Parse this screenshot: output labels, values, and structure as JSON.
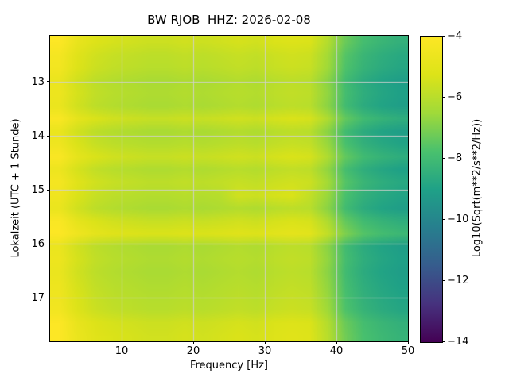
{
  "chart_data": {
    "type": "heatmap",
    "title": "BW RJOB  HHZ: 2026-02-08",
    "xlabel": "Frequency [Hz]",
    "ylabel": "Lokalzeit (UTC + 1 Stunde)",
    "colorbar_label": "Log10(Sqrt(m**2/s**2/Hz))",
    "x_range": [
      0,
      50
    ],
    "y_range": [
      12.15,
      17.8
    ],
    "xticks": [
      10,
      20,
      30,
      40,
      50
    ],
    "yticks": [
      13,
      14,
      15,
      16,
      17
    ],
    "colorbar_ticks": [
      -4,
      -6,
      -8,
      -10,
      -12,
      -14
    ],
    "colorbar_tick_labels": [
      "−4",
      "−6",
      "−8",
      "−10",
      "−12",
      "−14"
    ],
    "value_range": [
      -14,
      -4
    ],
    "grid": true,
    "grid_color": "#d0d0d0",
    "colormap": "viridis",
    "colormap_stops": [
      {
        "t": 0.0,
        "color": "#440154"
      },
      {
        "t": 0.125,
        "color": "#46327e"
      },
      {
        "t": 0.25,
        "color": "#365c8d"
      },
      {
        "t": 0.375,
        "color": "#277f8e"
      },
      {
        "t": 0.5,
        "color": "#1fa187"
      },
      {
        "t": 0.625,
        "color": "#4ac16d"
      },
      {
        "t": 0.75,
        "color": "#a0da39"
      },
      {
        "t": 0.875,
        "color": "#dde318"
      },
      {
        "t": 1.0,
        "color": "#fde725"
      }
    ],
    "values": [
      [
        -4.0,
        -4.8,
        -5.2,
        -5.4,
        -5.5,
        -5.6,
        -5.6,
        -5.5,
        -5.6,
        -5.5,
        -5.4,
        -5.5,
        -5.3,
        -5.2,
        -5.3,
        -6.1,
        -7.3,
        -7.9,
        -8.2,
        -8.4
      ],
      [
        -4.3,
        -5.1,
        -5.5,
        -5.7,
        -5.8,
        -5.9,
        -5.9,
        -5.8,
        -5.9,
        -5.8,
        -5.7,
        -5.8,
        -5.6,
        -5.5,
        -5.6,
        -6.4,
        -7.6,
        -8.2,
        -8.5,
        -8.7
      ],
      [
        -4.4,
        -5.2,
        -5.6,
        -5.8,
        -5.9,
        -6.0,
        -6.0,
        -5.9,
        -6.0,
        -5.9,
        -5.8,
        -5.9,
        -5.7,
        -5.6,
        -5.7,
        -6.5,
        -7.7,
        -8.3,
        -8.6,
        -8.8
      ],
      [
        -4.7,
        -5.5,
        -5.9,
        -6.1,
        -6.2,
        -6.3,
        -6.3,
        -6.2,
        -6.3,
        -6.2,
        -6.1,
        -6.2,
        -6.0,
        -5.9,
        -6.0,
        -6.8,
        -8.0,
        -8.6,
        -8.9,
        -9.1
      ],
      [
        -4.6,
        -5.4,
        -5.8,
        -6.0,
        -6.1,
        -6.2,
        -6.2,
        -6.1,
        -6.2,
        -6.1,
        -6.0,
        -6.1,
        -5.9,
        -5.8,
        -5.9,
        -6.7,
        -7.9,
        -8.5,
        -8.8,
        -9.0
      ],
      [
        -4.7,
        -5.5,
        -5.9,
        -6.1,
        -6.2,
        -6.3,
        -6.3,
        -6.2,
        -6.3,
        -6.2,
        -6.1,
        -6.2,
        -6.0,
        -5.9,
        -6.0,
        -6.8,
        -8.0,
        -8.6,
        -8.9,
        -9.1
      ],
      [
        -4.1,
        -4.9,
        -5.3,
        -5.5,
        -5.6,
        -5.7,
        -5.7,
        -5.6,
        -5.7,
        -5.6,
        -5.5,
        -5.6,
        -5.4,
        -5.3,
        -5.4,
        -6.2,
        -7.4,
        -8.0,
        -8.3,
        -8.5
      ],
      [
        -4.7,
        -5.5,
        -5.9,
        -6.1,
        -6.2,
        -6.3,
        -6.3,
        -6.2,
        -6.3,
        -6.2,
        -6.1,
        -6.2,
        -6.0,
        -5.9,
        -6.0,
        -6.8,
        -8.0,
        -8.6,
        -8.9,
        -9.1
      ],
      [
        -4.5,
        -5.3,
        -5.7,
        -5.9,
        -6.0,
        -6.1,
        -6.1,
        -6.0,
        -6.1,
        -6.0,
        -5.9,
        -6.0,
        -5.8,
        -5.7,
        -5.8,
        -6.6,
        -7.8,
        -8.4,
        -8.7,
        -8.9
      ],
      [
        -4.1,
        -4.9,
        -5.3,
        -5.5,
        -5.6,
        -5.7,
        -5.7,
        -5.6,
        -5.7,
        -5.6,
        -5.5,
        -5.6,
        -5.4,
        -5.3,
        -5.4,
        -6.2,
        -7.4,
        -8.0,
        -8.3,
        -8.5
      ],
      [
        -4.6,
        -5.4,
        -5.8,
        -6.0,
        -6.1,
        -6.2,
        -6.2,
        -6.1,
        -6.2,
        -6.1,
        -6.0,
        -6.1,
        -5.9,
        -5.8,
        -5.9,
        -6.7,
        -7.9,
        -8.5,
        -8.8,
        -9.0
      ],
      [
        -4.3,
        -5.1,
        -5.5,
        -5.7,
        -5.8,
        -5.9,
        -5.9,
        -5.8,
        -5.9,
        -5.8,
        -5.7,
        -5.8,
        -5.6,
        -5.5,
        -5.6,
        -6.4,
        -7.6,
        -8.2,
        -8.5,
        -8.7
      ],
      [
        -4.5,
        -5.3,
        -5.7,
        -5.9,
        -6.0,
        -6.1,
        -6.1,
        -6.0,
        -6.1,
        -6.0,
        -5.5,
        -5.6,
        -5.4,
        -5.3,
        -5.8,
        -6.6,
        -7.8,
        -8.4,
        -8.7,
        -8.9
      ],
      [
        -4.7,
        -5.5,
        -5.9,
        -6.1,
        -6.2,
        -6.3,
        -6.3,
        -6.2,
        -6.3,
        -6.2,
        -6.1,
        -6.2,
        -6.0,
        -5.9,
        -6.0,
        -6.8,
        -8.0,
        -8.6,
        -8.9,
        -9.1
      ],
      [
        -4.1,
        -4.9,
        -5.3,
        -5.5,
        -5.6,
        -5.7,
        -5.7,
        -5.6,
        -5.7,
        -5.6,
        -5.5,
        -5.6,
        -5.4,
        -5.3,
        -5.4,
        -6.2,
        -7.4,
        -8.0,
        -8.3,
        -8.5
      ],
      [
        -4.0,
        -4.5,
        -4.9,
        -5.1,
        -5.2,
        -5.3,
        -5.3,
        -5.2,
        -5.3,
        -5.2,
        -5.1,
        -5.2,
        -5.0,
        -4.9,
        -5.0,
        -5.8,
        -7.0,
        -7.6,
        -7.9,
        -8.1
      ],
      [
        -4.7,
        -5.5,
        -5.9,
        -6.1,
        -6.2,
        -6.3,
        -6.3,
        -6.2,
        -6.3,
        -6.2,
        -6.1,
        -6.2,
        -6.0,
        -5.9,
        -6.0,
        -6.8,
        -8.0,
        -8.6,
        -8.9,
        -9.1
      ],
      [
        -4.6,
        -5.4,
        -5.8,
        -6.0,
        -6.1,
        -6.2,
        -6.2,
        -6.1,
        -6.2,
        -6.1,
        -6.0,
        -6.1,
        -5.9,
        -5.8,
        -5.9,
        -6.7,
        -7.9,
        -8.5,
        -8.8,
        -9.0
      ],
      [
        -4.7,
        -5.5,
        -5.9,
        -6.1,
        -6.2,
        -6.3,
        -6.3,
        -6.2,
        -6.3,
        -6.2,
        -6.1,
        -6.2,
        -6.0,
        -5.9,
        -6.0,
        -6.8,
        -8.0,
        -8.6,
        -8.9,
        -9.1
      ],
      [
        -4.6,
        -5.4,
        -5.8,
        -6.0,
        -6.1,
        -6.2,
        -6.2,
        -6.1,
        -6.2,
        -6.1,
        -6.0,
        -6.1,
        -5.9,
        -5.8,
        -5.9,
        -6.7,
        -7.9,
        -8.5,
        -8.8,
        -9.0
      ],
      [
        -4.5,
        -5.3,
        -5.7,
        -5.9,
        -6.0,
        -6.1,
        -6.1,
        -6.0,
        -6.1,
        -6.0,
        -5.9,
        -6.0,
        -5.8,
        -5.7,
        -5.8,
        -6.6,
        -7.8,
        -8.4,
        -8.7,
        -8.9
      ],
      [
        -4.4,
        -5.2,
        -5.6,
        -5.8,
        -5.9,
        -6.0,
        -6.0,
        -5.9,
        -6.0,
        -5.9,
        -5.8,
        -5.9,
        -5.7,
        -5.6,
        -5.7,
        -6.5,
        -7.7,
        -8.3,
        -8.6,
        -8.8
      ],
      [
        -4.0,
        -4.8,
        -5.2,
        -5.4,
        -5.5,
        -5.6,
        -5.6,
        -5.5,
        -5.6,
        -5.5,
        -5.4,
        -5.5,
        -5.3,
        -5.2,
        -5.3,
        -6.1,
        -7.3,
        -7.9,
        -8.2,
        -8.4
      ],
      [
        -4.0,
        -4.7,
        -5.1,
        -5.3,
        -5.4,
        -5.5,
        -5.5,
        -5.4,
        -5.5,
        -5.4,
        -5.3,
        -5.4,
        -5.2,
        -5.1,
        -5.2,
        -6.0,
        -7.2,
        -7.8,
        -8.1,
        -8.3
      ]
    ]
  }
}
